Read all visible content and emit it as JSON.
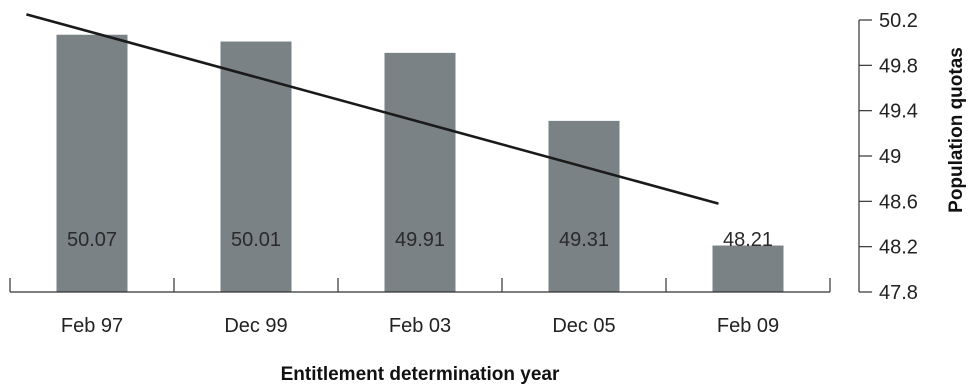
{
  "chart_data": {
    "type": "bar",
    "categories": [
      "Feb 97",
      "Dec 99",
      "Feb 03",
      "Dec 05",
      "Feb 09"
    ],
    "values": [
      50.07,
      50.01,
      49.91,
      49.31,
      48.21
    ],
    "data_labels": [
      "50.07",
      "50.01",
      "49.91",
      "49.31",
      "48.21"
    ],
    "trendline": {
      "start": 50.25,
      "end": 48.58
    },
    "xlabel": "Entitlement determination year",
    "ylabel": "Population quotas",
    "ylim": [
      47.8,
      50.2
    ],
    "yticks": [
      47.8,
      48.2,
      48.6,
      49,
      49.4,
      49.8,
      50.2
    ],
    "ytick_labels": [
      "47.8",
      "48.2",
      "48.6",
      "49",
      "49.4",
      "49.8",
      "50.2"
    ],
    "y_axis_side": "right",
    "grid": false,
    "colors": {
      "bar": "#7a8286",
      "trend": "#1a1a1a",
      "axis": "#333333"
    }
  }
}
